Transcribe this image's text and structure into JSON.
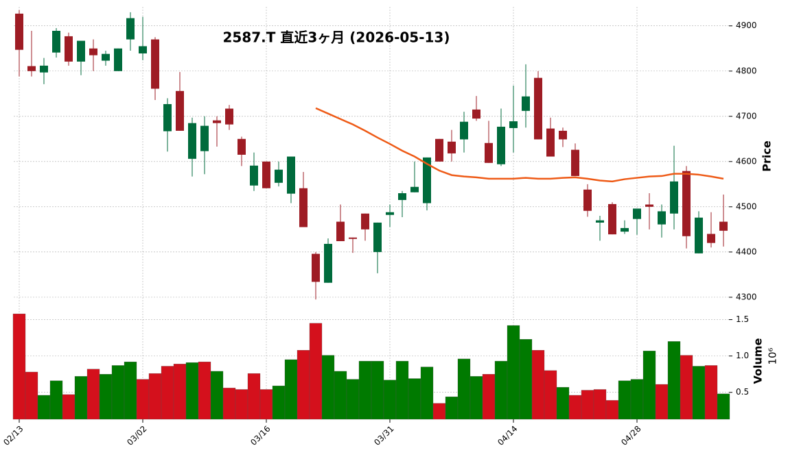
{
  "chart_data": {
    "type": "candlestick",
    "title": "2587.T  直近3ヶ月 (2026-05-13)",
    "y_label": "Price",
    "categories": [
      "02/13",
      null,
      null,
      null,
      null,
      null,
      null,
      null,
      null,
      null,
      "03/02",
      null,
      null,
      null,
      null,
      null,
      null,
      null,
      null,
      null,
      "03/16",
      null,
      null,
      null,
      null,
      null,
      null,
      null,
      null,
      null,
      "03/31",
      null,
      null,
      null,
      null,
      null,
      null,
      null,
      null,
      null,
      "04/14",
      null,
      null,
      null,
      null,
      null,
      null,
      null,
      null,
      null,
      "04/28",
      null,
      null,
      null,
      null,
      null,
      null,
      null
    ],
    "open": [
      4927,
      4811,
      4797,
      4841,
      4877,
      4821,
      4850,
      4823,
      4800,
      4870,
      4839,
      4870,
      4667,
      4756,
      4606,
      4623,
      4691,
      4717,
      4650,
      4547,
      4600,
      4553,
      4529,
      4541,
      4396,
      4332,
      4467,
      4432,
      4485,
      4400,
      4482,
      4515,
      4532,
      4508,
      4650,
      4644,
      4649,
      4715,
      4641,
      4594,
      4674,
      4712,
      4785,
      4673,
      4668,
      4626,
      4538,
      4465,
      4506,
      4445,
      4473,
      4505,
      4461,
      4485,
      4579,
      4397,
      4440,
      4467
    ],
    "high": [
      4935,
      4889,
      4829,
      4895,
      4885,
      4867,
      4870,
      4845,
      4850,
      4930,
      4920,
      4875,
      4740,
      4798,
      4697,
      4700,
      4700,
      4725,
      4655,
      4620,
      4600,
      4600,
      4611,
      4577,
      4400,
      4430,
      4505,
      4432,
      4485,
      4465,
      4505,
      4535,
      4600,
      4609,
      4650,
      4670,
      4710,
      4745,
      4690,
      4717,
      4768,
      4815,
      4800,
      4697,
      4675,
      4640,
      4550,
      4480,
      4510,
      4470,
      4496,
      4530,
      4505,
      4635,
      4590,
      4490,
      4488,
      4527
    ],
    "low": [
      4788,
      4788,
      4771,
      4830,
      4812,
      4791,
      4800,
      4812,
      4800,
      4845,
      4824,
      4736,
      4622,
      4668,
      4567,
      4572,
      4633,
      4670,
      4590,
      4535,
      4541,
      4545,
      4508,
      4455,
      4295,
      4332,
      4424,
      4398,
      4425,
      4353,
      4455,
      4477,
      4532,
      4492,
      4600,
      4600,
      4620,
      4690,
      4597,
      4590,
      4620,
      4675,
      4649,
      4611,
      4632,
      4568,
      4478,
      4425,
      4439,
      4440,
      4438,
      4450,
      4432,
      4450,
      4408,
      4397,
      4410,
      4412
    ],
    "close": [
      4847,
      4800,
      4812,
      4889,
      4821,
      4867,
      4835,
      4838,
      4850,
      4917,
      4855,
      4761,
      4727,
      4668,
      4685,
      4679,
      4685,
      4682,
      4615,
      4591,
      4541,
      4582,
      4611,
      4455,
      4334,
      4418,
      4424,
      4429,
      4450,
      4465,
      4488,
      4530,
      4544,
      4609,
      4600,
      4618,
      4688,
      4695,
      4597,
      4677,
      4689,
      4744,
      4649,
      4611,
      4649,
      4568,
      4491,
      4470,
      4439,
      4453,
      4496,
      4500,
      4490,
      4556,
      4435,
      4476,
      4420,
      4447
    ],
    "up_color": "#006b3c",
    "down_color": "#9e1c24",
    "moving_average": {
      "color": "#ee5a16",
      "values": [
        null,
        null,
        null,
        null,
        null,
        null,
        null,
        null,
        null,
        null,
        null,
        null,
        null,
        null,
        null,
        null,
        null,
        null,
        null,
        null,
        null,
        null,
        null,
        null,
        4718,
        4706,
        4694,
        4682,
        4668,
        4653,
        4639,
        4624,
        4611,
        4595,
        4580,
        4570,
        4567,
        4565,
        4562,
        4562,
        4562,
        4564,
        4562,
        4562,
        4564,
        4565,
        4562,
        4558,
        4556,
        4561,
        4564,
        4567,
        4568,
        4573,
        4573,
        4571,
        4567,
        4562
      ]
    },
    "ylim": [
      4268,
      4942
    ],
    "yticks": [
      4300,
      4400,
      4500,
      4600,
      4700,
      4800,
      4900
    ],
    "grid": true,
    "volume": {
      "y_label": "Volume",
      "offset_label": "10⁶",
      "values": [
        1.58,
        0.78,
        0.46,
        0.66,
        0.47,
        0.72,
        0.82,
        0.75,
        0.87,
        0.92,
        0.68,
        0.76,
        0.86,
        0.89,
        0.91,
        0.92,
        0.79,
        0.56,
        0.54,
        0.76,
        0.54,
        0.59,
        0.95,
        1.08,
        1.45,
        1.01,
        0.79,
        0.68,
        0.93,
        0.93,
        0.67,
        0.93,
        0.69,
        0.85,
        0.35,
        0.44,
        0.96,
        0.72,
        0.75,
        0.93,
        1.42,
        1.23,
        1.08,
        0.8,
        0.57,
        0.46,
        0.53,
        0.54,
        0.39,
        0.66,
        0.68,
        1.07,
        0.61,
        1.2,
        1.01,
        0.86,
        0.87,
        0.48
      ],
      "up_color": "#007a00",
      "down_color": "#d4101c",
      "ylim": [
        0.13,
        1.59
      ],
      "yticks": [
        0.5,
        {
          "value": 1,
          "label": "1.0"
        },
        1.5
      ]
    }
  }
}
